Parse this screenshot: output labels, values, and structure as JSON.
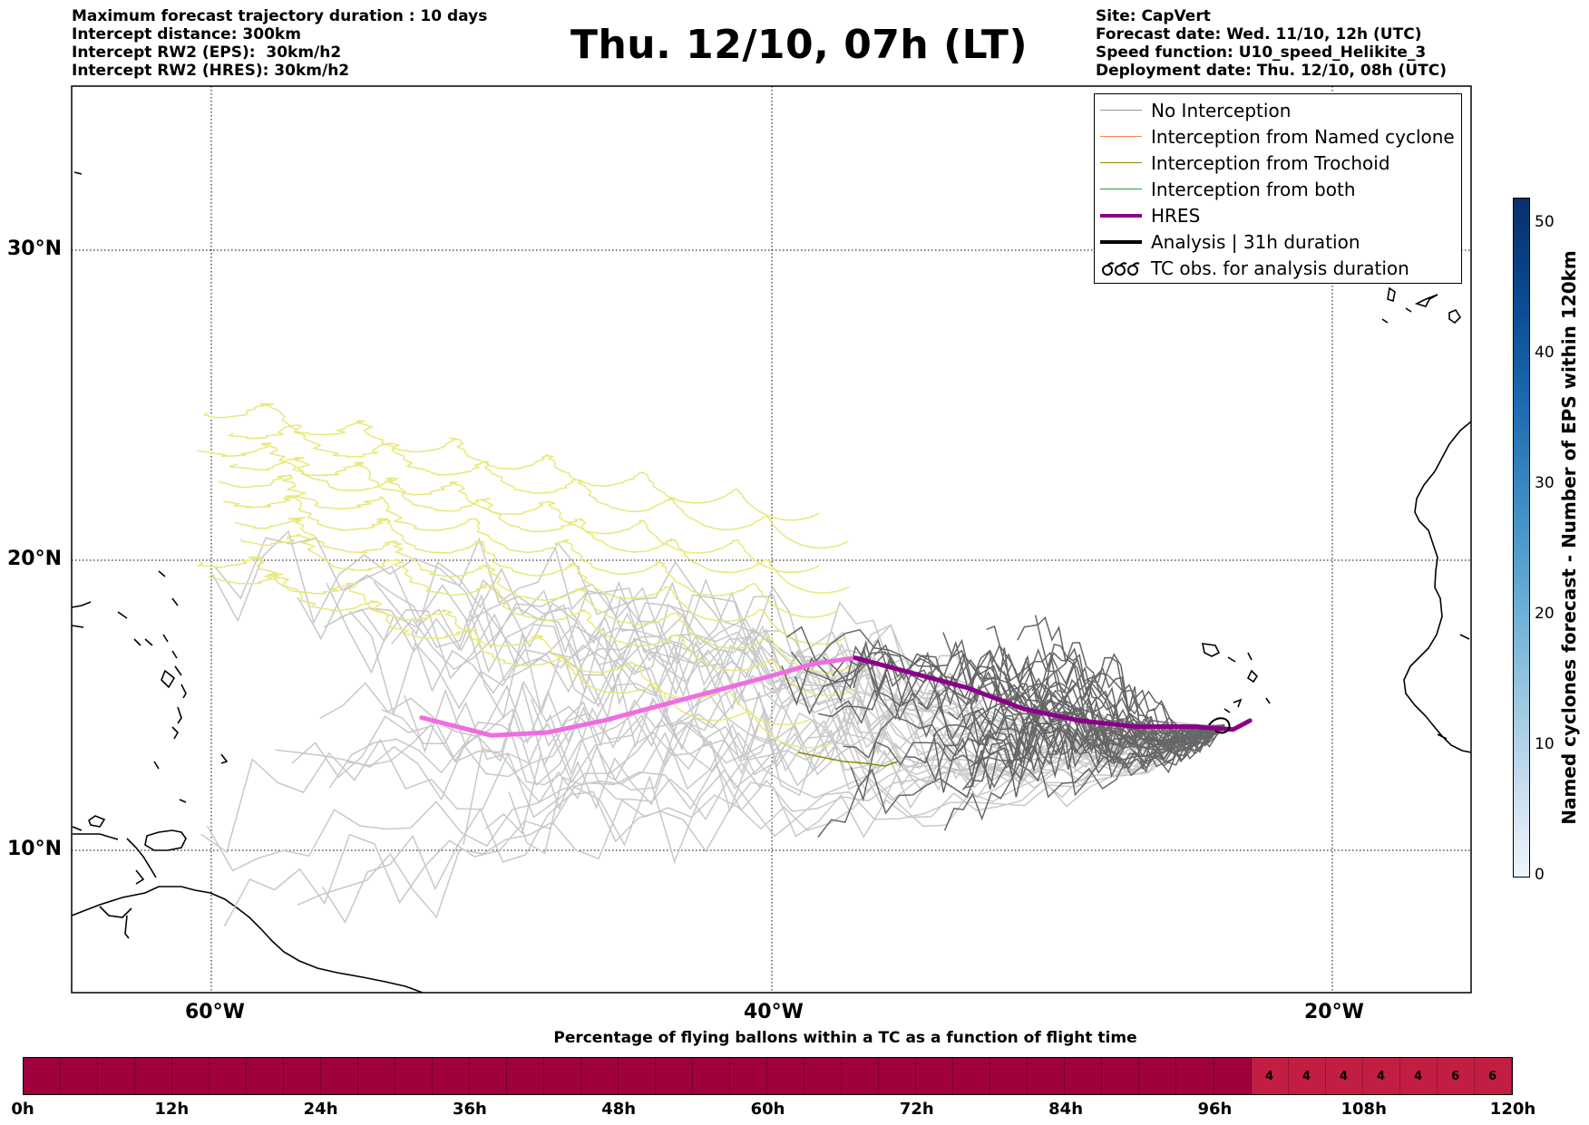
{
  "header_left": [
    "Maximum forecast trajectory duration : 10 days",
    "Intercept distance: 300km",
    "Intercept RW2 (EPS):  30km/h2",
    "Intercept RW2 (HRES): 30km/h2"
  ],
  "title": "Thu. 12/10, 07h (LT)",
  "header_right": [
    "Site: CapVert",
    "Forecast date: Wed. 11/10, 12h (UTC)",
    "Speed function: U10_speed_Helikite_3",
    "Deployment date: Thu. 12/10, 08h (UTC)"
  ],
  "map": {
    "lon_labels": [
      "60°W",
      "40°W",
      "20°W"
    ],
    "lat_labels": [
      "30°N",
      "20°N",
      "10°N"
    ],
    "lon_range": [
      -65,
      -15
    ],
    "lat_range": [
      5.4,
      34.6
    ],
    "hres_track": [
      [
        -52.5,
        14.8
      ],
      [
        -50,
        14.2
      ],
      [
        -48,
        14.3
      ],
      [
        -46,
        14.7
      ],
      [
        -44,
        15.2
      ],
      [
        -42,
        15.7
      ],
      [
        -40,
        16.2
      ],
      [
        -38.5,
        16.6
      ],
      [
        -37,
        16.8
      ],
      [
        -35,
        16.3
      ],
      [
        -33,
        15.8
      ],
      [
        -31,
        15.1
      ],
      [
        -29,
        14.7
      ],
      [
        -27,
        14.5
      ],
      [
        -25,
        14.5
      ],
      [
        -23.5,
        14.4
      ],
      [
        -22.9,
        14.7
      ]
    ],
    "colors": {
      "no_interception": "#c8c8c8",
      "ensemble_dark": "#666666",
      "named_cyclone": "#ff7f50",
      "trochoid": "#8b8b00",
      "both": "#2ca02c",
      "hres": "#8b008b",
      "hres_early": "#ee6ee0",
      "trochoid_loops": "#e8e878"
    }
  },
  "legend": [
    {
      "label": "No Interception",
      "style": "line",
      "color": "#999999"
    },
    {
      "label": "Interception from Named cyclone",
      "style": "line",
      "color": "#ff7f50"
    },
    {
      "label": "Interception from Trochoid",
      "style": "line",
      "color": "#8b8b00"
    },
    {
      "label": "Interception from both",
      "style": "line",
      "color": "#2ca02c"
    },
    {
      "label": "HRES",
      "style": "thick",
      "color": "#8b008b"
    },
    {
      "label": "Analysis | 31h duration",
      "style": "thick",
      "color": "#000000"
    },
    {
      "label": "TC obs. for analysis duration",
      "style": "cyclone-symbol",
      "color": "#000000"
    }
  ],
  "colorbar": {
    "label": "Named cyclones forecast - Number of EPS within 120km",
    "ticks": [
      "50",
      "40",
      "30",
      "20",
      "10",
      "0"
    ],
    "max": 52
  },
  "pct_bar": {
    "title": "Percentage of flying ballons within a TC as a function of flight time",
    "ticks": [
      "0h",
      "12h",
      "24h",
      "36h",
      "48h",
      "60h",
      "72h",
      "84h",
      "96h",
      "108h",
      "120h"
    ],
    "cells": [
      "",
      "",
      "",
      "",
      "",
      "",
      "",
      "",
      "",
      "",
      "",
      "",
      "",
      "",
      "",
      "",
      "",
      "",
      "",
      "",
      "",
      "",
      "",
      "",
      "",
      "",
      "",
      "",
      "",
      "",
      "",
      "",
      "",
      "4",
      "4",
      "4",
      "4",
      "4",
      "6",
      "6"
    ],
    "color_zero": "#a0003c",
    "color_low": "#c21e44"
  }
}
